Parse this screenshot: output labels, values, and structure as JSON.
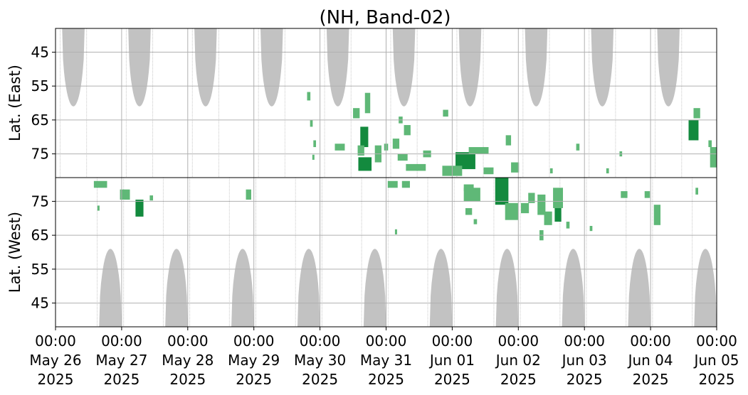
{
  "chart_data": {
    "type": "heatmap",
    "title": "(NH, Band-02)",
    "x_axis": {
      "range": [
        "2025-05-26T00:00",
        "2025-06-05T00:00"
      ],
      "ticks": [
        {
          "time": "00:00",
          "date": "May 26",
          "year": "2025"
        },
        {
          "time": "00:00",
          "date": "May 27",
          "year": "2025"
        },
        {
          "time": "00:00",
          "date": "May 28",
          "year": "2025"
        },
        {
          "time": "00:00",
          "date": "May 29",
          "year": "2025"
        },
        {
          "time": "00:00",
          "date": "May 30",
          "year": "2025"
        },
        {
          "time": "00:00",
          "date": "May 31",
          "year": "2025"
        },
        {
          "time": "00:00",
          "date": "Jun 01",
          "year": "2025"
        },
        {
          "time": "00:00",
          "date": "Jun 02",
          "year": "2025"
        },
        {
          "time": "00:00",
          "date": "Jun 03",
          "year": "2025"
        },
        {
          "time": "00:00",
          "date": "Jun 04",
          "year": "2025"
        },
        {
          "time": "00:00",
          "date": "Jun 05",
          "year": "2025"
        }
      ]
    },
    "panels": [
      {
        "name": "east",
        "ylabel": "Lat. (East)",
        "yticks": [
          45,
          55,
          65,
          75
        ],
        "ylim": [
          38,
          82
        ],
        "inverted": true,
        "daylight_gaps": [
          {
            "center_day": 0.27,
            "min_lat": 61
          },
          {
            "center_day": 1.27,
            "min_lat": 61
          },
          {
            "center_day": 2.27,
            "min_lat": 61
          },
          {
            "center_day": 3.27,
            "min_lat": 61
          },
          {
            "center_day": 4.27,
            "min_lat": 61
          },
          {
            "center_day": 5.27,
            "min_lat": 61
          },
          {
            "center_day": 6.27,
            "min_lat": 61
          },
          {
            "center_day": 7.27,
            "min_lat": 61
          },
          {
            "center_day": 8.27,
            "min_lat": 61
          },
          {
            "center_day": 9.27,
            "min_lat": 61
          }
        ],
        "detections": [
          {
            "day": 3.83,
            "lat": 58,
            "w": 0.05,
            "h": 2.5,
            "intensity": 1
          },
          {
            "day": 3.87,
            "lat": 66,
            "w": 0.04,
            "h": 2,
            "intensity": 1
          },
          {
            "day": 3.92,
            "lat": 72,
            "w": 0.04,
            "h": 2,
            "intensity": 1
          },
          {
            "day": 3.9,
            "lat": 76,
            "w": 0.03,
            "h": 1.5,
            "intensity": 1
          },
          {
            "day": 4.3,
            "lat": 73,
            "w": 0.15,
            "h": 2,
            "intensity": 1
          },
          {
            "day": 4.55,
            "lat": 63,
            "w": 0.1,
            "h": 3,
            "intensity": 1
          },
          {
            "day": 4.67,
            "lat": 70,
            "w": 0.12,
            "h": 6,
            "intensity": 2
          },
          {
            "day": 4.72,
            "lat": 60,
            "w": 0.08,
            "h": 6,
            "intensity": 1
          },
          {
            "day": 4.68,
            "lat": 78,
            "w": 0.2,
            "h": 4,
            "intensity": 2
          },
          {
            "day": 4.62,
            "lat": 74,
            "w": 0.1,
            "h": 3,
            "intensity": 1
          },
          {
            "day": 4.88,
            "lat": 75,
            "w": 0.1,
            "h": 5,
            "intensity": 1
          },
          {
            "day": 5.0,
            "lat": 73,
            "w": 0.06,
            "h": 2,
            "intensity": 1
          },
          {
            "day": 5.15,
            "lat": 72,
            "w": 0.1,
            "h": 3,
            "intensity": 1
          },
          {
            "day": 5.22,
            "lat": 65,
            "w": 0.06,
            "h": 2,
            "intensity": 1
          },
          {
            "day": 5.32,
            "lat": 68,
            "w": 0.1,
            "h": 3,
            "intensity": 1
          },
          {
            "day": 5.25,
            "lat": 76,
            "w": 0.15,
            "h": 2,
            "intensity": 1
          },
          {
            "day": 5.45,
            "lat": 79,
            "w": 0.3,
            "h": 2,
            "intensity": 1
          },
          {
            "day": 5.62,
            "lat": 75,
            "w": 0.12,
            "h": 2,
            "intensity": 1
          },
          {
            "day": 6.2,
            "lat": 77,
            "w": 0.3,
            "h": 5,
            "intensity": 2
          },
          {
            "day": 6.0,
            "lat": 80,
            "w": 0.3,
            "h": 3,
            "intensity": 1
          },
          {
            "day": 6.4,
            "lat": 74,
            "w": 0.3,
            "h": 2,
            "intensity": 1
          },
          {
            "day": 6.55,
            "lat": 80,
            "w": 0.15,
            "h": 2,
            "intensity": 1
          },
          {
            "day": 6.85,
            "lat": 71,
            "w": 0.08,
            "h": 3,
            "intensity": 1
          },
          {
            "day": 6.95,
            "lat": 79,
            "w": 0.12,
            "h": 3,
            "intensity": 1
          },
          {
            "day": 5.9,
            "lat": 63,
            "w": 0.08,
            "h": 2,
            "intensity": 1
          },
          {
            "day": 7.5,
            "lat": 80,
            "w": 0.04,
            "h": 1.5,
            "intensity": 1
          },
          {
            "day": 7.9,
            "lat": 73,
            "w": 0.05,
            "h": 2,
            "intensity": 1
          },
          {
            "day": 8.55,
            "lat": 75,
            "w": 0.04,
            "h": 1.5,
            "intensity": 1
          },
          {
            "day": 8.35,
            "lat": 80,
            "w": 0.04,
            "h": 1.5,
            "intensity": 1
          },
          {
            "day": 9.65,
            "lat": 68,
            "w": 0.15,
            "h": 6,
            "intensity": 2
          },
          {
            "day": 9.7,
            "lat": 63,
            "w": 0.1,
            "h": 3,
            "intensity": 1
          },
          {
            "day": 9.95,
            "lat": 76,
            "w": 0.1,
            "h": 6,
            "intensity": 1
          },
          {
            "day": 9.9,
            "lat": 72,
            "w": 0.05,
            "h": 2,
            "intensity": 1
          }
        ]
      },
      {
        "name": "west",
        "ylabel": "Lat. (West)",
        "yticks": [
          45,
          55,
          65,
          75
        ],
        "ylim": [
          38,
          82
        ],
        "inverted": false,
        "daylight_gaps": [
          {
            "center_day": 0.83,
            "min_lat": 61
          },
          {
            "center_day": 1.83,
            "min_lat": 61
          },
          {
            "center_day": 2.83,
            "min_lat": 61
          },
          {
            "center_day": 3.83,
            "min_lat": 61
          },
          {
            "center_day": 4.83,
            "min_lat": 61
          },
          {
            "center_day": 5.83,
            "min_lat": 61
          },
          {
            "center_day": 6.83,
            "min_lat": 61
          },
          {
            "center_day": 7.83,
            "min_lat": 61
          },
          {
            "center_day": 8.83,
            "min_lat": 61
          },
          {
            "center_day": 9.83,
            "min_lat": 61
          }
        ],
        "detections": [
          {
            "day": 0.68,
            "lat": 80,
            "w": 0.2,
            "h": 2,
            "intensity": 1
          },
          {
            "day": 0.65,
            "lat": 73,
            "w": 0.03,
            "h": 1.5,
            "intensity": 1
          },
          {
            "day": 1.05,
            "lat": 77,
            "w": 0.15,
            "h": 3,
            "intensity": 1
          },
          {
            "day": 1.27,
            "lat": 73,
            "w": 0.12,
            "h": 5,
            "intensity": 2
          },
          {
            "day": 1.45,
            "lat": 76,
            "w": 0.05,
            "h": 1.5,
            "intensity": 1
          },
          {
            "day": 2.92,
            "lat": 77,
            "w": 0.08,
            "h": 3,
            "intensity": 1
          },
          {
            "day": 5.1,
            "lat": 80,
            "w": 0.15,
            "h": 2,
            "intensity": 1
          },
          {
            "day": 5.3,
            "lat": 80,
            "w": 0.12,
            "h": 2,
            "intensity": 1
          },
          {
            "day": 5.15,
            "lat": 66,
            "w": 0.02,
            "h": 1.5,
            "intensity": 1
          },
          {
            "day": 6.25,
            "lat": 79,
            "w": 0.15,
            "h": 2,
            "intensity": 1
          },
          {
            "day": 6.3,
            "lat": 77,
            "w": 0.25,
            "h": 4,
            "intensity": 1
          },
          {
            "day": 6.25,
            "lat": 72,
            "w": 0.1,
            "h": 2,
            "intensity": 1
          },
          {
            "day": 6.35,
            "lat": 69,
            "w": 0.05,
            "h": 1.5,
            "intensity": 1
          },
          {
            "day": 6.75,
            "lat": 78,
            "w": 0.2,
            "h": 8,
            "intensity": 2
          },
          {
            "day": 6.9,
            "lat": 72,
            "w": 0.2,
            "h": 5,
            "intensity": 1
          },
          {
            "day": 7.1,
            "lat": 73,
            "w": 0.12,
            "h": 3,
            "intensity": 1
          },
          {
            "day": 7.2,
            "lat": 76,
            "w": 0.1,
            "h": 3,
            "intensity": 1
          },
          {
            "day": 7.35,
            "lat": 74,
            "w": 0.12,
            "h": 6,
            "intensity": 1
          },
          {
            "day": 7.45,
            "lat": 70,
            "w": 0.12,
            "h": 4,
            "intensity": 1
          },
          {
            "day": 7.6,
            "lat": 76,
            "w": 0.15,
            "h": 6,
            "intensity": 1
          },
          {
            "day": 7.6,
            "lat": 71,
            "w": 0.1,
            "h": 4,
            "intensity": 2
          },
          {
            "day": 7.75,
            "lat": 68,
            "w": 0.05,
            "h": 2,
            "intensity": 1
          },
          {
            "day": 7.35,
            "lat": 65,
            "w": 0.06,
            "h": 3,
            "intensity": 1
          },
          {
            "day": 8.1,
            "lat": 67,
            "w": 0.04,
            "h": 1.5,
            "intensity": 1
          },
          {
            "day": 8.6,
            "lat": 77,
            "w": 0.1,
            "h": 2,
            "intensity": 1
          },
          {
            "day": 8.95,
            "lat": 77,
            "w": 0.08,
            "h": 2,
            "intensity": 1
          },
          {
            "day": 9.1,
            "lat": 71,
            "w": 0.1,
            "h": 6,
            "intensity": 1
          },
          {
            "day": 9.7,
            "lat": 78,
            "w": 0.04,
            "h": 2,
            "intensity": 1
          }
        ]
      }
    ],
    "colors": {
      "daylight_mask": "#c2c2c2",
      "gap_lines": "#c8c8c8",
      "detection_low": "#5fb877",
      "detection_high": "#138a3e",
      "grid": "#b0b0b0",
      "axes": "#000000"
    }
  }
}
